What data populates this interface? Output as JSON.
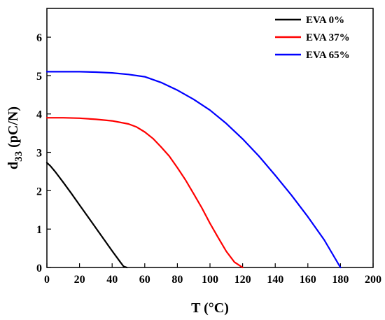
{
  "chart_data": {
    "type": "line",
    "xlabel": "T (°C)",
    "ylabel": {
      "main": "d",
      "sub": "33",
      "unit": " (pC/N)"
    },
    "xlim": [
      0,
      200
    ],
    "ylim": [
      0,
      6.75
    ],
    "xticks": [
      "0",
      "20",
      "40",
      "60",
      "80",
      "100",
      "120",
      "140",
      "160",
      "180",
      "200"
    ],
    "yticks": [
      "0",
      "1",
      "2",
      "3",
      "4",
      "5",
      "6"
    ],
    "grid": false,
    "legend_position": "top-right",
    "series": [
      {
        "name": "EVA 0%",
        "color": "#000000",
        "x": [
          0,
          2,
          5,
          10,
          15,
          20,
          25,
          30,
          35,
          40,
          45,
          47,
          49
        ],
        "y": [
          2.73,
          2.65,
          2.5,
          2.22,
          1.93,
          1.63,
          1.33,
          1.03,
          0.73,
          0.43,
          0.14,
          0.03,
          0
        ]
      },
      {
        "name": "EVA 37%",
        "color": "#ff0000",
        "x": [
          0,
          10,
          20,
          30,
          40,
          50,
          55,
          60,
          65,
          70,
          75,
          80,
          85,
          90,
          95,
          100,
          105,
          110,
          115,
          120
        ],
        "y": [
          3.9,
          3.9,
          3.89,
          3.86,
          3.82,
          3.74,
          3.66,
          3.53,
          3.36,
          3.14,
          2.9,
          2.6,
          2.28,
          1.92,
          1.55,
          1.15,
          0.78,
          0.42,
          0.14,
          0
        ]
      },
      {
        "name": "EVA 65%",
        "color": "#0000ff",
        "x": [
          0,
          10,
          20,
          30,
          40,
          50,
          60,
          70,
          80,
          90,
          100,
          110,
          120,
          130,
          140,
          150,
          160,
          170,
          180
        ],
        "y": [
          5.1,
          5.1,
          5.1,
          5.09,
          5.07,
          5.03,
          4.97,
          4.82,
          4.62,
          4.38,
          4.1,
          3.75,
          3.35,
          2.9,
          2.4,
          1.88,
          1.32,
          0.72,
          0
        ]
      }
    ]
  }
}
